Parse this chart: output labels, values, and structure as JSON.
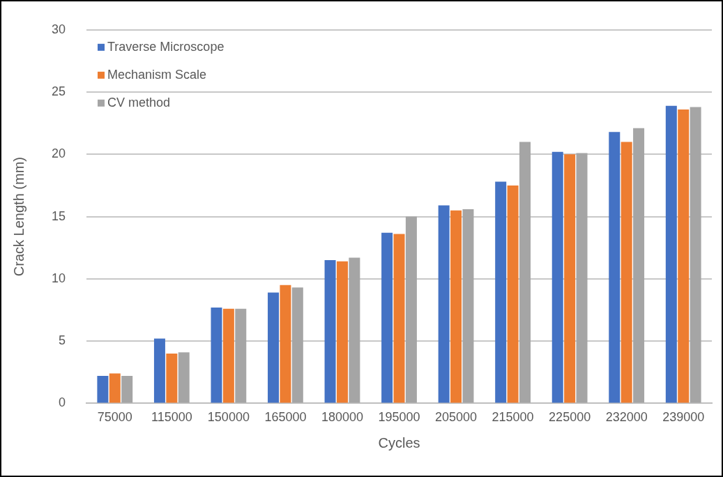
{
  "chart_data": {
    "type": "bar",
    "xlabel": "Cycles",
    "ylabel": "Crack Length (mm)",
    "categories": [
      "75000",
      "115000",
      "150000",
      "165000",
      "180000",
      "195000",
      "205000",
      "215000",
      "225000",
      "232000",
      "239000"
    ],
    "series": [
      {
        "name": "Traverse Microscope",
        "color": "#4472c4",
        "values": [
          2.2,
          5.2,
          7.7,
          8.9,
          11.5,
          13.7,
          15.9,
          17.8,
          20.2,
          21.8,
          23.9
        ]
      },
      {
        "name": "Mechanism Scale",
        "color": "#ed7d31",
        "values": [
          2.4,
          4.0,
          7.6,
          9.5,
          11.4,
          13.6,
          15.5,
          17.5,
          20.0,
          21.0,
          23.6
        ]
      },
      {
        "name": "CV method",
        "color": "#a5a5a5",
        "values": [
          2.2,
          4.1,
          7.6,
          9.3,
          11.7,
          15.0,
          15.6,
          21.0,
          20.1,
          22.1,
          23.8
        ]
      }
    ],
    "ylim": [
      0,
      30
    ],
    "yticks": [
      0,
      5,
      10,
      15,
      20,
      25,
      30
    ],
    "grid": "y",
    "legend": "top left"
  }
}
